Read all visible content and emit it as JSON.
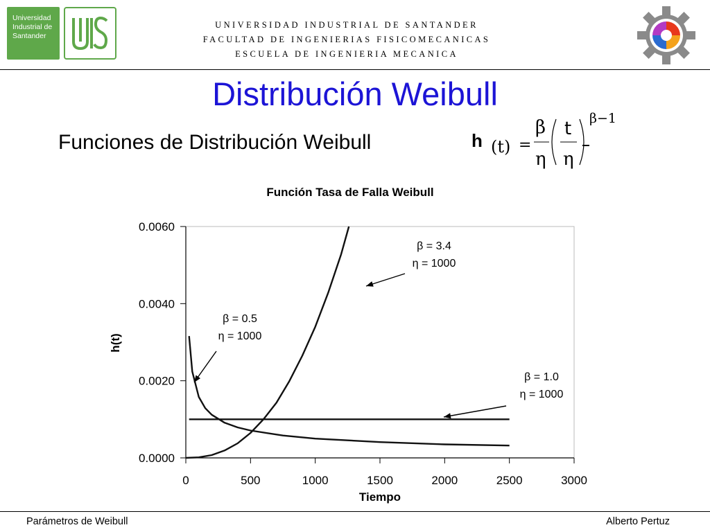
{
  "header": {
    "logo_text": [
      "Universidad",
      "Industrial de",
      "Santander"
    ],
    "logo_mark_text": "UIS",
    "lines": [
      "UNIVERSIDAD INDUSTRIAL DE SANTANDER",
      "FACULTAD DE INGENIERIAS FISICOMECANICAS",
      "ESCUELA DE INGENIERIA MECANICA"
    ]
  },
  "title": "Distribución Weibull",
  "subtitle": "Funciones de Distribución Weibull",
  "formula": {
    "lhs_func": "h",
    "lhs_arg": "(t)",
    "eq": "=",
    "beta": "β",
    "eta": "η",
    "t": "t",
    "exponent": "β−1"
  },
  "chart_data": {
    "type": "line",
    "title": "Función Tasa de Falla Weibull",
    "xlabel": "Tiempo",
    "ylabel": "h(t)",
    "xlim": [
      0,
      3000
    ],
    "ylim": [
      0,
      0.006
    ],
    "x_ticks": [
      "0",
      "500",
      "1000",
      "1500",
      "2000",
      "2500",
      "3000"
    ],
    "y_ticks": [
      "0.0000",
      "0.0020",
      "0.0040",
      "0.0060"
    ],
    "series": [
      {
        "beta": 0.5,
        "eta": 1000,
        "label": [
          "β = 0.5",
          "η = 1000"
        ],
        "x": [
          25,
          50,
          100,
          150,
          200,
          300,
          400,
          500,
          750,
          1000,
          1500,
          2000,
          2500
        ],
        "y": [
          0.00316,
          0.00224,
          0.00158,
          0.00129,
          0.00112,
          0.00091,
          0.00079,
          0.00071,
          0.00058,
          0.0005,
          0.00041,
          0.00035,
          0.00032
        ]
      },
      {
        "beta": 1.0,
        "eta": 1000,
        "label": [
          "β = 1.0",
          "η = 1000"
        ],
        "x": [
          25,
          2500
        ],
        "y": [
          0.001,
          0.001
        ]
      },
      {
        "beta": 3.4,
        "eta": 1000,
        "label": [
          "β = 3.4",
          "η = 1000"
        ],
        "x": [
          0,
          100,
          200,
          300,
          400,
          500,
          600,
          700,
          800,
          900,
          1000,
          1100,
          1200,
          1260
        ],
        "y": [
          0,
          1.35e-05,
          7.14e-05,
          0.000192,
          0.000378,
          0.000646,
          0.001,
          0.00143,
          0.00199,
          0.00265,
          0.0034,
          0.00428,
          0.00528,
          0.006
        ]
      }
    ],
    "grid": false,
    "legend": "none"
  },
  "footer": {
    "left": "Parámetros de Weibull",
    "right": "Alberto Pertuz"
  }
}
